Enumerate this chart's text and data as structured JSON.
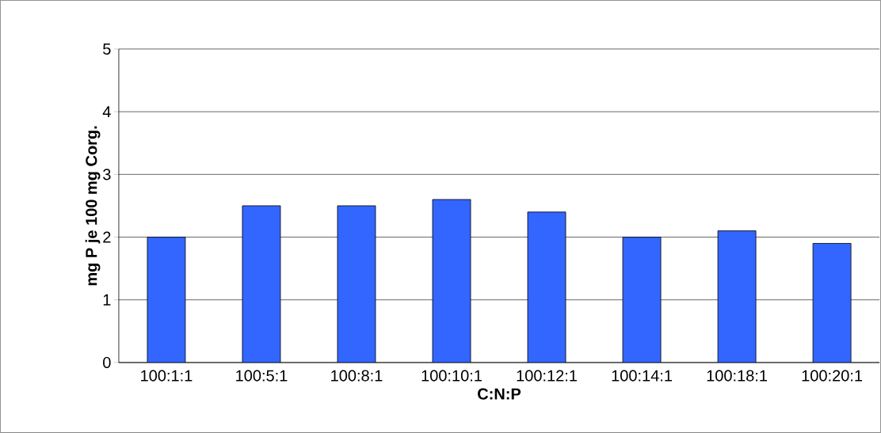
{
  "chart_data": {
    "type": "bar",
    "xlabel": "C:N:P",
    "ylabel": "mg P je 100 mg Corg.",
    "categories": [
      "100:1:1",
      "100:5:1",
      "100:8:1",
      "100:10:1",
      "100:12:1",
      "100:14:1",
      "100:18:1",
      "100:20:1"
    ],
    "values": [
      2.0,
      2.5,
      2.5,
      2.6,
      2.4,
      2.0,
      2.1,
      1.9
    ],
    "color": "#3366ff",
    "ylim": [
      0,
      5
    ],
    "yticks": [
      0,
      1,
      2,
      3,
      4,
      5
    ],
    "grid": "y"
  }
}
